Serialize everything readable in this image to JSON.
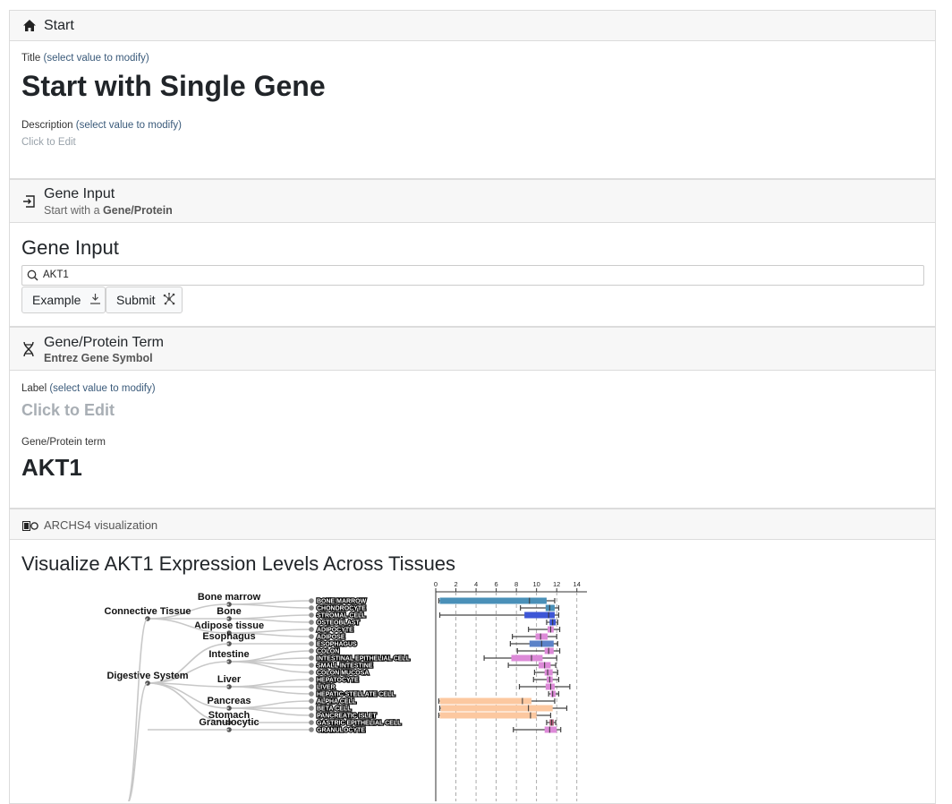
{
  "start": {
    "header": "Start",
    "title_label": "Title",
    "title_hint": "(select value to modify)",
    "title": "Start with Single Gene",
    "description_label": "Description",
    "description_hint": "(select value to modify)",
    "description_placeholder": "Click to Edit"
  },
  "gene_input": {
    "header": "Gene Input",
    "subtitle_prefix": "Start with a",
    "subtitle_bold": "Gene/Protein",
    "heading": "Gene Input",
    "search_value": "AKT1",
    "example_label": "Example",
    "submit_label": "Submit"
  },
  "gene_term": {
    "header": "Gene/Protein Term",
    "subtitle": "Entrez Gene Symbol",
    "label_label": "Label",
    "label_hint": "(select value to modify)",
    "label_placeholder": "Click to Edit",
    "term_label": "Gene/Protein term",
    "term_value": "AKT1"
  },
  "archs4": {
    "header": "ARCHS4 visualization",
    "heading": "Visualize AKT1 Expression Levels Across Tissues"
  },
  "chart_data": {
    "type": "boxplot",
    "xlim": [
      0,
      15
    ],
    "ticks": [
      "0",
      "2",
      "4",
      "6",
      "8",
      "10",
      "12",
      "14"
    ],
    "groups": [
      {
        "name": "Connective Tissue",
        "subgroups": [
          {
            "name": "Bone marrow",
            "leaves": [
              "BONE MARROW",
              "CHONDROCYTE"
            ]
          },
          {
            "name": "Bone",
            "leaves": [
              "STROMAL CELL",
              "OSTEOBLAST"
            ]
          },
          {
            "name": "Adipose tissue",
            "leaves": [
              "ADIPOCYTE",
              "ADIPOSE"
            ]
          }
        ]
      },
      {
        "name": "Digestive System",
        "subgroups": [
          {
            "name": "Esophagus",
            "leaves": [
              "ESOPHAGUS"
            ]
          },
          {
            "name": "Intestine",
            "leaves": [
              "COLON",
              "INTESTINAL EPITHELIAL CELL",
              "SMALL INTESTINE",
              "COLON MUCOSA"
            ]
          },
          {
            "name": "Liver",
            "leaves": [
              "HEPATOCYTE",
              "LIVER",
              "HEPATIC STELLATE CELL"
            ]
          },
          {
            "name": "Pancreas",
            "leaves": [
              "ALPHA CELL",
              "BETA CELL",
              "PANCREATIC ISLET"
            ]
          },
          {
            "name": "Stomach",
            "leaves": [
              "GASTRIC EPITHELIAL CELL"
            ]
          }
        ]
      },
      {
        "name": "",
        "subgroups": [
          {
            "name": "Granulocytic",
            "leaves": [
              "GRANULOCYTE"
            ]
          }
        ]
      }
    ],
    "boxes": [
      {
        "label": "BONE MARROW",
        "color": "#4a90b8",
        "whisker": [
          0.3,
          11.8
        ],
        "box": [
          0.4,
          11.0
        ],
        "median": 9.3
      },
      {
        "label": "CHONDROCYTE",
        "color": "#4a90b8",
        "whisker": [
          8.4,
          12.2
        ],
        "box": [
          10.9,
          11.8
        ],
        "median": 11.3
      },
      {
        "label": "STROMAL CELL",
        "color": "#3d56d6",
        "whisker": [
          0.4,
          12.2
        ],
        "box": [
          8.8,
          11.8
        ],
        "median": 11.2
      },
      {
        "label": "OSTEOBLAST",
        "color": "#3d56d6",
        "whisker": [
          11.0,
          12.1
        ],
        "box": [
          11.3,
          11.9
        ],
        "median": 11.6
      },
      {
        "label": "ADIPOCYTE",
        "color": "#dd8ad8",
        "whisker": [
          9.2,
          12.3
        ],
        "box": [
          11.1,
          11.7
        ],
        "median": 11.4
      },
      {
        "label": "ADIPOSE",
        "color": "#dd8ad8",
        "whisker": [
          7.6,
          12.0
        ],
        "box": [
          9.9,
          11.1
        ],
        "median": 10.4
      },
      {
        "label": "ESOPHAGUS",
        "color": "#5b82c8",
        "whisker": [
          7.4,
          12.1
        ],
        "box": [
          9.3,
          11.7
        ],
        "median": 10.5
      },
      {
        "label": "COLON",
        "color": "#dd8ad8",
        "whisker": [
          8.1,
          12.3
        ],
        "box": [
          10.8,
          11.7
        ],
        "median": 11.2
      },
      {
        "label": "INTESTINAL EPITHELIAL CELL",
        "color": "#dd8ad8",
        "whisker": [
          4.8,
          12.0
        ],
        "box": [
          7.5,
          10.6
        ],
        "median": 9.5
      },
      {
        "label": "SMALL INTESTINE",
        "color": "#dd8ad8",
        "whisker": [
          7.2,
          11.9
        ],
        "box": [
          10.2,
          11.4
        ],
        "median": 10.8
      },
      {
        "label": "COLON MUCOSA",
        "color": "#dd8ad8",
        "whisker": [
          9.8,
          12.1
        ],
        "box": [
          10.8,
          11.6
        ],
        "median": 11.1
      },
      {
        "label": "HEPATOCYTE",
        "color": "#dd8ad8",
        "whisker": [
          9.7,
          12.2
        ],
        "box": [
          11.0,
          11.6
        ],
        "median": 11.3
      },
      {
        "label": "LIVER",
        "color": "#dd8ad8",
        "whisker": [
          8.3,
          13.3
        ],
        "box": [
          10.9,
          11.8
        ],
        "median": 11.4
      },
      {
        "label": "HEPATIC STELLATE CELL",
        "color": "#dd8ad8",
        "whisker": [
          11.2,
          12.2
        ],
        "box": [
          11.4,
          11.9
        ],
        "median": 11.6
      },
      {
        "label": "ALPHA CELL",
        "color": "#fcc8a0",
        "whisker": [
          0.3,
          11.8
        ],
        "box": [
          0.4,
          9.5
        ],
        "median": 8.6
      },
      {
        "label": "BETA CELL",
        "color": "#fcc8a0",
        "whisker": [
          0.4,
          13.0
        ],
        "box": [
          0.5,
          11.6
        ],
        "median": 9.2
      },
      {
        "label": "PANCREATIC ISLET",
        "color": "#fcc8a0",
        "whisker": [
          0.3,
          11.4
        ],
        "box": [
          0.4,
          10.0
        ],
        "median": 9.4
      },
      {
        "label": "GASTRIC EPITHELIAL CELL",
        "color": "#b35a7a",
        "whisker": [
          11.0,
          11.9
        ],
        "box": [
          11.3,
          11.7
        ],
        "median": 11.5
      },
      {
        "label": "GRANULOCYTE",
        "color": "#dd8ad8",
        "whisker": [
          7.7,
          12.4
        ],
        "box": [
          10.8,
          12.0
        ],
        "median": 11.3
      }
    ]
  }
}
